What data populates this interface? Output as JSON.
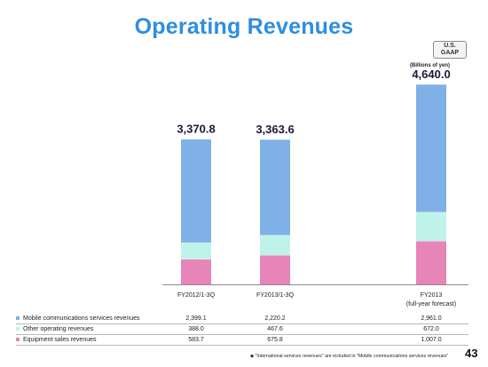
{
  "header": {
    "title": "Operating Revenues",
    "badge_line1": "U.S.",
    "badge_line2": "GAAP",
    "units": "(Billions  of yen)"
  },
  "chart_data": {
    "type": "bar",
    "stacked": true,
    "categories": [
      "FY2012/1-3Q",
      "FY2013/1-3Q",
      "FY2013"
    ],
    "category_sublabels": [
      "",
      "",
      "(full-year forecast)"
    ],
    "totals": [
      "3,370.8",
      "3,363.6",
      "4,640.0"
    ],
    "series": [
      {
        "name": "Mobile communications services revenues",
        "values": [
          2399.1,
          2220.2,
          2961.0
        ],
        "labels": [
          "2,399.1",
          "2,220.2",
          "2,961.0"
        ],
        "color": "#7fb0e6"
      },
      {
        "name": "Other operating revenues",
        "values": [
          388.0,
          467.6,
          672.0
        ],
        "labels": [
          "388.0",
          "467.6",
          "672.0"
        ],
        "color": "#bff3ea"
      },
      {
        "name": "Equipment sales revenues",
        "values": [
          583.7,
          675.8,
          1007.0
        ],
        "labels": [
          "583.7",
          "675.8",
          "1,007.0"
        ],
        "color": "#e785b8"
      }
    ]
  },
  "footnote": "◆ \"International services revenues\" are included in \"Mobile communications services revenues\"",
  "page_number": "43"
}
